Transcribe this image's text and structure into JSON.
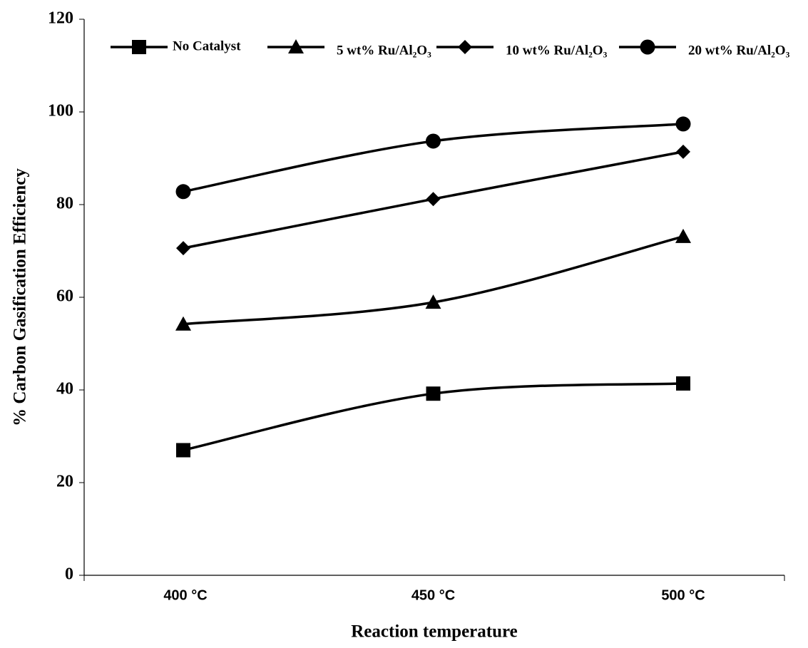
{
  "chart_data": {
    "type": "line",
    "x_label": "Reaction temperature",
    "y_label": "% Carbon Gasification Efficiency",
    "categories": [
      "400 °C",
      "450 °C",
      "500 °C"
    ],
    "series": [
      {
        "name": "No Catalyst",
        "color": "#000000",
        "marker": "square",
        "values": [
          27,
          39.2,
          41.4
        ]
      },
      {
        "name": "5 wt% Ru/Al₂O₃",
        "color": "#000000",
        "marker": "triangle",
        "values": [
          54.2,
          58.9,
          73.1
        ]
      },
      {
        "name": "10 wt% Ru/Al₂O₃",
        "color": "#000000",
        "marker": "diamond",
        "values": [
          70.6,
          81.2,
          91.4
        ]
      },
      {
        "name": "20 wt% Ru/Al₂O₃",
        "color": "#000000",
        "marker": "circle",
        "values": [
          82.8,
          93.7,
          97.4
        ]
      }
    ],
    "ylim": [
      0,
      120
    ],
    "yticks": [
      0,
      20,
      40,
      60,
      80,
      100,
      120
    ],
    "grid": false,
    "smooth": true,
    "legend": "top"
  }
}
